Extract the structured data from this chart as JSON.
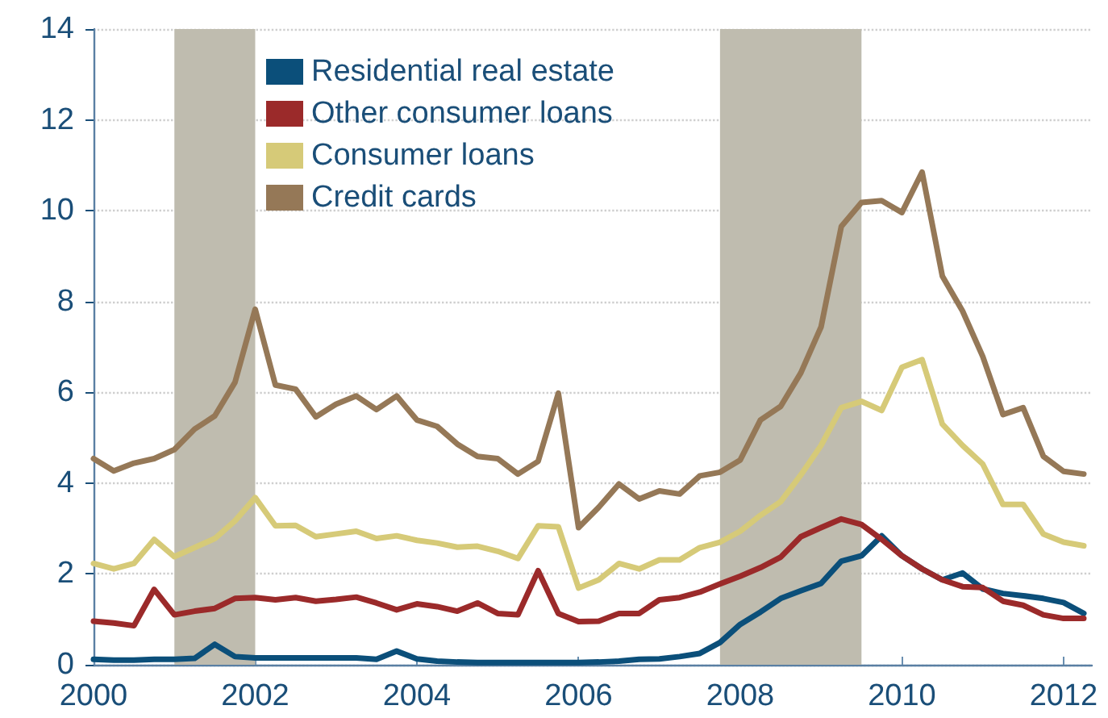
{
  "chart_data": {
    "type": "line",
    "x": [
      2000,
      2000.25,
      2000.5,
      2000.75,
      2001,
      2001.25,
      2001.5,
      2001.75,
      2002,
      2002.25,
      2002.5,
      2002.75,
      2003,
      2003.25,
      2003.5,
      2003.75,
      2004,
      2004.25,
      2004.5,
      2004.75,
      2005,
      2005.25,
      2005.5,
      2005.75,
      2006,
      2006.25,
      2006.5,
      2006.75,
      2007,
      2007.25,
      2007.5,
      2007.75,
      2008,
      2008.25,
      2008.5,
      2008.75,
      2009,
      2009.25,
      2009.5,
      2009.75,
      2010,
      2010.25,
      2010.5,
      2010.75,
      2011,
      2011.25,
      2011.5,
      2011.75,
      2012,
      2012.25
    ],
    "series": [
      {
        "name": "Residential real estate",
        "color": "#0b4f7a",
        "values": [
          0.12,
          0.1,
          0.1,
          0.12,
          0.12,
          0.14,
          0.45,
          0.18,
          0.15,
          0.15,
          0.15,
          0.15,
          0.15,
          0.15,
          0.12,
          0.3,
          0.13,
          0.08,
          0.06,
          0.05,
          0.05,
          0.05,
          0.05,
          0.05,
          0.05,
          0.06,
          0.08,
          0.12,
          0.13,
          0.18,
          0.25,
          0.49,
          0.89,
          1.16,
          1.46,
          1.63,
          1.79,
          2.28,
          2.4,
          2.84,
          2.4,
          2.11,
          1.87,
          2.02,
          1.67,
          1.57,
          1.52,
          1.46,
          1.37,
          1.13
        ]
      },
      {
        "name": "Other consumer loans",
        "color": "#9b2a2a",
        "values": [
          0.96,
          0.92,
          0.86,
          1.66,
          1.1,
          1.18,
          1.24,
          1.46,
          1.48,
          1.43,
          1.48,
          1.4,
          1.44,
          1.49,
          1.36,
          1.21,
          1.34,
          1.28,
          1.18,
          1.36,
          1.13,
          1.1,
          2.07,
          1.13,
          0.95,
          0.96,
          1.13,
          1.13,
          1.43,
          1.48,
          1.6,
          1.78,
          1.95,
          2.14,
          2.37,
          2.82,
          3.02,
          3.21,
          3.09,
          2.76,
          2.4,
          2.11,
          1.87,
          1.72,
          1.7,
          1.4,
          1.31,
          1.1,
          1.02,
          1.02
        ]
      },
      {
        "name": "Consumer loans",
        "color": "#d6ca78",
        "values": [
          2.23,
          2.11,
          2.23,
          2.76,
          2.38,
          2.58,
          2.78,
          3.17,
          3.68,
          3.06,
          3.07,
          2.82,
          2.88,
          2.94,
          2.78,
          2.84,
          2.74,
          2.68,
          2.59,
          2.61,
          2.5,
          2.34,
          3.06,
          3.04,
          1.69,
          1.87,
          2.23,
          2.11,
          2.31,
          2.31,
          2.58,
          2.7,
          2.94,
          3.29,
          3.59,
          4.18,
          4.83,
          5.66,
          5.8,
          5.6,
          6.55,
          6.72,
          5.3,
          4.83,
          4.42,
          3.53,
          3.53,
          2.88,
          2.7,
          2.62
        ]
      },
      {
        "name": "Credit cards",
        "color": "#957857",
        "values": [
          4.54,
          4.27,
          4.44,
          4.54,
          4.74,
          5.19,
          5.48,
          6.22,
          7.83,
          6.16,
          6.07,
          5.46,
          5.74,
          5.92,
          5.62,
          5.92,
          5.39,
          5.25,
          4.86,
          4.59,
          4.54,
          4.2,
          4.48,
          5.98,
          3.02,
          3.47,
          3.98,
          3.65,
          3.83,
          3.76,
          4.16,
          4.24,
          4.51,
          5.39,
          5.69,
          6.43,
          7.44,
          9.65,
          10.18,
          10.22,
          9.96,
          10.85,
          8.56,
          7.79,
          6.79,
          5.51,
          5.66,
          4.59,
          4.26,
          4.2
        ]
      }
    ],
    "xlim": [
      2000,
      2012.35
    ],
    "xticks": [
      2000,
      2002,
      2004,
      2006,
      2008,
      2010,
      2012
    ],
    "ylim": [
      0,
      14
    ],
    "yticks": [
      0,
      2,
      4,
      6,
      8,
      10,
      12,
      14
    ],
    "bands": [
      {
        "axis": "x",
        "from": 2001,
        "to": 2002,
        "color": "#bfbcaf"
      },
      {
        "axis": "x",
        "from": 2007.75,
        "to": 2009.5,
        "color": "#bfbcaf"
      }
    ],
    "grid": "y",
    "legend": "top left",
    "marker": "none",
    "line_style": "solid"
  }
}
